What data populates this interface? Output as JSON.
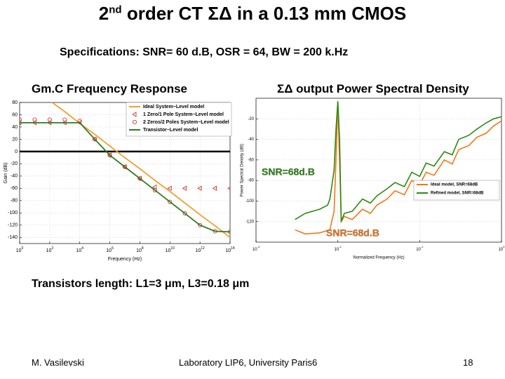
{
  "header": {
    "number": "2",
    "suffix": "nd",
    "title": "order CT ΣΔ in a 0.13 mm CMOS"
  },
  "specifications": "Specifications: SNR= 60 d.B, OSR = 64, BW = 200 k.Hz",
  "chart_data": [
    {
      "type": "line",
      "title": "Gm.C Frequency Response",
      "x_label": "Frequency (Hz)",
      "y_label": "Gain (dB)",
      "log_x": true,
      "grid": true,
      "zero_line": true,
      "legend": "upper right",
      "xlim": [
        1,
        100000000000000
      ],
      "ylim": [
        -150,
        80
      ],
      "xticks": [
        {
          "value": 1,
          "label": "10",
          "exponent": "0"
        },
        {
          "value": 100,
          "label": "10",
          "exponent": "2"
        },
        {
          "value": 10000,
          "label": "10",
          "exponent": "4"
        },
        {
          "value": 1000000,
          "label": "10",
          "exponent": "6"
        },
        {
          "value": 100000000,
          "label": "10",
          "exponent": "8"
        },
        {
          "value": 10000000000,
          "label": "10",
          "exponent": "10"
        },
        {
          "value": 1000000000000,
          "label": "10",
          "exponent": "12"
        },
        {
          "value": 100000000000000,
          "label": "10",
          "exponent": "14"
        }
      ],
      "yticks": [
        80,
        60,
        40,
        20,
        0,
        -20,
        -40,
        -60,
        -80,
        -100,
        -120,
        -140
      ],
      "x": [
        1,
        10,
        100,
        1000,
        10000,
        100000,
        1000000,
        10000000,
        100000000,
        1000000000,
        10000000000,
        100000000000,
        1000000000000,
        10000000000000,
        100000000000000
      ],
      "series": [
        {
          "name": "Ideal System−Level model",
          "color": "#f0a030",
          "marker": "line",
          "values": [
            null,
            null,
            83,
            65,
            46,
            28,
            9,
            -10,
            -28,
            -47,
            -65,
            -84,
            -103,
            -121,
            -140
          ]
        },
        {
          "name": "1 Zero/1 Pole System−Level model",
          "color": "#d02020",
          "marker": "triangle",
          "values": [
            47,
            47,
            47,
            47,
            47,
            20,
            -6,
            -25,
            -44,
            -58,
            -60,
            -60,
            -60,
            -60,
            -60
          ]
        },
        {
          "name": "2 Zeros/2 Poles System−Level model",
          "color": "#d02020",
          "marker": "circle",
          "values": [
            52,
            52,
            52,
            52,
            50,
            20,
            -6,
            -25,
            -44,
            -63,
            -82,
            -101,
            -120,
            -130,
            -131
          ]
        },
        {
          "name": "Transistor−Level model",
          "color": "#2e7d1e",
          "marker": "line",
          "values": [
            47,
            47,
            47,
            47,
            47,
            20,
            -6,
            -25,
            -44,
            -63,
            -82,
            -101,
            -120,
            -130,
            -131
          ]
        }
      ]
    },
    {
      "type": "line",
      "title": "ΣΔ output Power Spectral Density",
      "x_label": "Normalized Frequency (Hz)",
      "y_label": "Power Spectral Density (dB)",
      "log_x": true,
      "grid": true,
      "legend": "lower right",
      "xlim": [
        0.001,
        1
      ],
      "ylim": [
        -140,
        0
      ],
      "xticks": [
        {
          "value": 0.001,
          "label": "10",
          "exponent": "-3"
        },
        {
          "value": 0.01,
          "label": "10",
          "exponent": "-2"
        },
        {
          "value": 0.1,
          "label": "10",
          "exponent": "-1"
        },
        {
          "value": 1,
          "label": "10",
          "exponent": "0"
        }
      ],
      "yticks": [
        -20,
        -40,
        -60,
        -80,
        -100,
        -120
      ],
      "series": [
        {
          "name": "Ideal model, SNR=68dB",
          "color": "#f07818",
          "marker": "line",
          "x": [
            0.003,
            0.004,
            0.006,
            0.008,
            0.009,
            0.0095,
            0.01,
            0.0105,
            0.011,
            0.012,
            0.015,
            0.02,
            0.025,
            0.03,
            0.04,
            0.05,
            0.065,
            0.08,
            0.1,
            0.12,
            0.15,
            0.2,
            0.25,
            0.3,
            0.4,
            0.5,
            0.65,
            0.8,
            1
          ],
          "values": [
            -128,
            -132,
            -131,
            -128,
            -110,
            -60,
            -3,
            -60,
            -120,
            -115,
            -118,
            -108,
            -112,
            -104,
            -98,
            -90,
            -94,
            -80,
            -84,
            -72,
            -75,
            -60,
            -64,
            -50,
            -46,
            -38,
            -34,
            -27,
            -22
          ]
        },
        {
          "name": "Refined model, SNR=68dB",
          "color": "#2a8a10",
          "marker": "line",
          "x": [
            0.003,
            0.004,
            0.006,
            0.0075,
            0.008,
            0.009,
            0.0095,
            0.01,
            0.0105,
            0.011,
            0.012,
            0.015,
            0.02,
            0.025,
            0.03,
            0.04,
            0.05,
            0.065,
            0.08,
            0.1,
            0.12,
            0.15,
            0.2,
            0.25,
            0.3,
            0.4,
            0.5,
            0.65,
            0.8,
            1
          ],
          "values": [
            -118,
            -112,
            -108,
            -104,
            -98,
            -70,
            -30,
            -3,
            -40,
            -120,
            -112,
            -110,
            -98,
            -102,
            -95,
            -88,
            -82,
            -86,
            -72,
            -76,
            -63,
            -66,
            -52,
            -55,
            -40,
            -36,
            -30,
            -24,
            -20,
            -18
          ]
        }
      ],
      "annotations": [
        {
          "text": "SNR=68d.B",
          "color": "#2a8a10"
        },
        {
          "text": "SNR=68d.B",
          "color": "#f07818"
        }
      ]
    }
  ],
  "note": "Transistors length: L1=3 μm, L3=0.18 μm",
  "footer": {
    "author": "M. Vasilevski",
    "affiliation": "Laboratory LIP6, University Paris6",
    "page": "18"
  }
}
